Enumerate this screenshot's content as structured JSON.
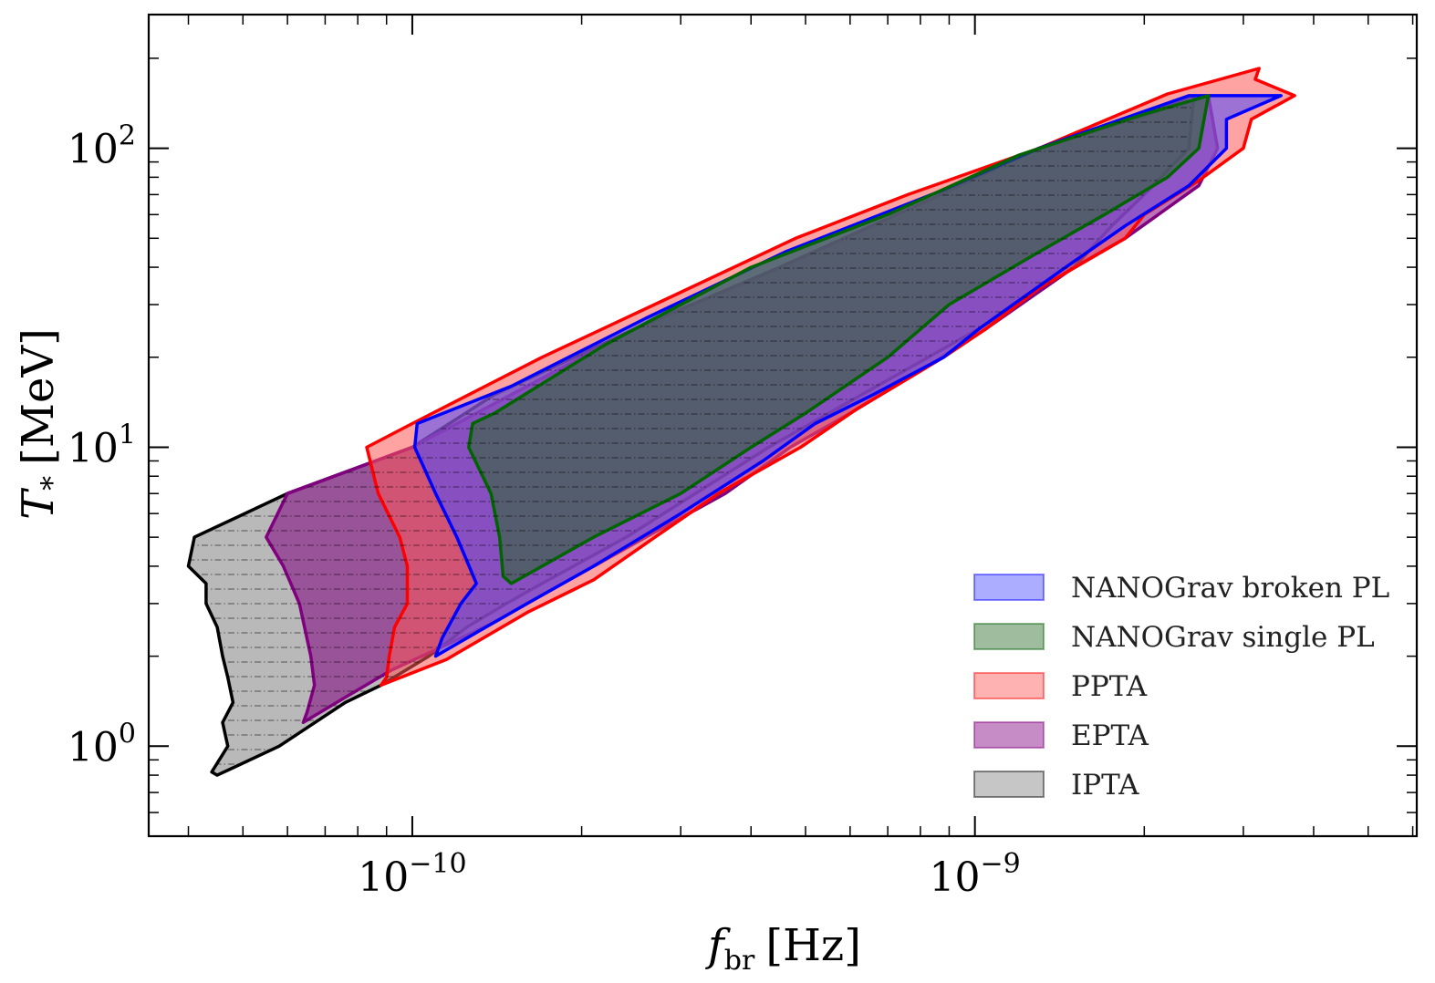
{
  "chart_data": {
    "type": "area",
    "xlabel": "f_br [Hz]",
    "xlabel_main": "f",
    "xlabel_sub": "br",
    "xlabel_unit": "[Hz]",
    "ylabel": "T_* [MeV]",
    "ylabel_main": "T",
    "ylabel_sub": "*",
    "ylabel_unit": "[MeV]",
    "x_scale": "log",
    "y_scale": "log",
    "xlim": [
      3.4e-11,
      6.1e-09
    ],
    "ylim": [
      0.5,
      280
    ],
    "x_ticks": [
      {
        "value": 1e-10,
        "base": "10",
        "exp": "−10"
      },
      {
        "value": 1e-09,
        "base": "10",
        "exp": "−9"
      }
    ],
    "y_ticks": [
      {
        "value": 1,
        "base": "10",
        "exp": "0"
      },
      {
        "value": 10,
        "base": "10",
        "exp": "1"
      },
      {
        "value": 100,
        "base": "10",
        "exp": "2"
      }
    ],
    "legend_position": "lower-right",
    "series": [
      {
        "name": "IPTA",
        "fill": "#808080",
        "stroke": "#000000",
        "polygon": [
          [
            4.5e-11,
            0.8
          ],
          [
            5.8e-11,
            1.0
          ],
          [
            7.6e-11,
            1.4
          ],
          [
            8.8e-11,
            1.6
          ],
          [
            1.07e-10,
            2.0
          ],
          [
            1.25e-10,
            2.5
          ],
          [
            1.47e-10,
            3.0
          ],
          [
            1.7e-10,
            3.5
          ],
          [
            2.4e-10,
            5.0
          ],
          [
            4.3e-10,
            10.0
          ],
          [
            6.3e-10,
            15.0
          ],
          [
            1.02e-09,
            25.0
          ],
          [
            1.5e-09,
            40.0
          ],
          [
            1.75e-09,
            55.0
          ],
          [
            2e-09,
            70.0
          ],
          [
            2.4e-09,
            100.0
          ],
          [
            2.45e-09,
            150.0
          ],
          [
            1.3e-09,
            100.0
          ],
          [
            8.7e-10,
            70.0
          ],
          [
            4.5e-10,
            40.0
          ],
          [
            2.5e-10,
            25.0
          ],
          [
            1.4e-10,
            15.0
          ],
          [
            1e-10,
            10.0
          ],
          [
            6e-11,
            7.0
          ],
          [
            4.1e-11,
            5.0
          ],
          [
            4e-11,
            4.0
          ],
          [
            4.3e-11,
            3.5
          ],
          [
            4.3e-11,
            3.0
          ],
          [
            4.5e-11,
            2.5
          ],
          [
            4.6e-11,
            2.0
          ],
          [
            4.7e-11,
            1.7
          ],
          [
            4.8e-11,
            1.4
          ],
          [
            4.6e-11,
            1.2
          ],
          [
            4.7e-11,
            1.0
          ],
          [
            4.4e-11,
            0.82
          ]
        ]
      },
      {
        "name": "EPTA",
        "fill": "#800080",
        "stroke": "#800080",
        "polygon": [
          [
            6.4e-11,
            1.2
          ],
          [
            7.8e-11,
            1.5
          ],
          [
            9.2e-11,
            1.8
          ],
          [
            1.1e-10,
            2.1
          ],
          [
            1.4e-10,
            2.6
          ],
          [
            1.7e-10,
            3.2
          ],
          [
            2.6e-10,
            5.0
          ],
          [
            3.6e-10,
            7.0
          ],
          [
            4.7e-10,
            10.0
          ],
          [
            6e-10,
            13.0
          ],
          [
            8e-10,
            18.0
          ],
          [
            1.05e-09,
            25.0
          ],
          [
            1.5e-09,
            40.0
          ],
          [
            1.85e-09,
            50.0
          ],
          [
            2.5e-09,
            75.0
          ],
          [
            2.7e-09,
            100.0
          ],
          [
            2.6e-09,
            150.0
          ],
          [
            1.3e-09,
            100.0
          ],
          [
            8.7e-10,
            70.0
          ],
          [
            4.5e-10,
            40.0
          ],
          [
            2.5e-10,
            25.0
          ],
          [
            1.5e-10,
            15.0
          ],
          [
            1e-10,
            10.0
          ],
          [
            6e-11,
            7.0
          ],
          [
            5.5e-11,
            5.0
          ],
          [
            5.9e-11,
            4.0
          ],
          [
            6.3e-11,
            3.0
          ],
          [
            6.6e-11,
            2.0
          ],
          [
            6.7e-11,
            1.6
          ],
          [
            6.5e-11,
            1.3
          ]
        ]
      },
      {
        "name": "PPTA",
        "fill": "#ff5555",
        "stroke": "#ff0000",
        "polygon": [
          [
            8.8e-11,
            1.6
          ],
          [
            1.15e-10,
            1.95
          ],
          [
            1.6e-10,
            2.8
          ],
          [
            2.1e-10,
            3.6
          ],
          [
            2.7e-10,
            5.0
          ],
          [
            3.5e-10,
            7.0
          ],
          [
            4.9e-10,
            10.0
          ],
          [
            6.2e-10,
            13.5
          ],
          [
            8.8e-10,
            20.0
          ],
          [
            1.05e-09,
            25.0
          ],
          [
            1.3e-09,
            34.0
          ],
          [
            1.85e-09,
            50.0
          ],
          [
            2e-09,
            60.0
          ],
          [
            2.5e-09,
            78.0
          ],
          [
            3e-09,
            100.0
          ],
          [
            3.1e-09,
            125.0
          ],
          [
            3.7e-09,
            150.0
          ],
          [
            3.15e-09,
            170.0
          ],
          [
            3.2e-09,
            185.0
          ],
          [
            2.2e-09,
            152.0
          ],
          [
            1.3e-09,
            100.0
          ],
          [
            7.6e-10,
            70.0
          ],
          [
            4.8e-10,
            50.0
          ],
          [
            3e-10,
            33.0
          ],
          [
            1.7e-10,
            20.0
          ],
          [
            1e-10,
            12.0
          ],
          [
            8.3e-11,
            10.0
          ],
          [
            8.7e-11,
            7.0
          ],
          [
            9.5e-11,
            5.0
          ],
          [
            9.8e-11,
            4.0
          ],
          [
            9.8e-11,
            3.0
          ],
          [
            9.3e-11,
            2.5
          ],
          [
            9.1e-11,
            2.0
          ],
          [
            9e-11,
            1.7
          ]
        ]
      },
      {
        "name": "NANOGrav broken PL",
        "fill": "#4a4aff",
        "stroke": "#0000ff",
        "polygon": [
          [
            1.1e-10,
            2.0
          ],
          [
            1.3e-10,
            2.4
          ],
          [
            1.6e-10,
            3.0
          ],
          [
            2.1e-10,
            4.0
          ],
          [
            3e-10,
            6.0
          ],
          [
            4.2e-10,
            9.0
          ],
          [
            5.2e-10,
            12.0
          ],
          [
            6.6e-10,
            15.0
          ],
          [
            8.8e-10,
            20.0
          ],
          [
            1.02e-09,
            25.0
          ],
          [
            1.45e-09,
            40.0
          ],
          [
            1.85e-09,
            55.0
          ],
          [
            2.4e-09,
            75.0
          ],
          [
            2.8e-09,
            100.0
          ],
          [
            2.8e-09,
            125.0
          ],
          [
            3.5e-09,
            150.0
          ],
          [
            2.4e-09,
            150.0
          ],
          [
            1.3e-09,
            100.0
          ],
          [
            8.7e-10,
            72.0
          ],
          [
            4.6e-10,
            45.0
          ],
          [
            2.6e-10,
            27.0
          ],
          [
            1.5e-10,
            16.0
          ],
          [
            1.02e-10,
            12.0
          ],
          [
            1.01e-10,
            10.0
          ],
          [
            1.1e-10,
            7.0
          ],
          [
            1.2e-10,
            5.0
          ],
          [
            1.3e-10,
            3.5
          ],
          [
            1.22e-10,
            3.0
          ],
          [
            1.13e-10,
            2.3
          ]
        ]
      },
      {
        "name": "NANOGrav single PL",
        "fill": "#2a6a2a",
        "stroke": "#006400",
        "polygon": [
          [
            1.5e-10,
            3.5
          ],
          [
            2.1e-10,
            5.0
          ],
          [
            3e-10,
            7.0
          ],
          [
            4e-10,
            10.0
          ],
          [
            5e-10,
            13.0
          ],
          [
            7e-10,
            20.0
          ],
          [
            9e-10,
            30.0
          ],
          [
            1.3e-09,
            45.0
          ],
          [
            1.7e-09,
            60.0
          ],
          [
            2.2e-09,
            80.0
          ],
          [
            2.5e-09,
            100.0
          ],
          [
            2.6e-09,
            150.0
          ],
          [
            2e-09,
            130.0
          ],
          [
            1.2e-09,
            95.0
          ],
          [
            7e-10,
            60.0
          ],
          [
            4e-10,
            40.0
          ],
          [
            2.2e-10,
            22.0
          ],
          [
            1.4e-10,
            13.0
          ],
          [
            1.28e-10,
            12.0
          ],
          [
            1.26e-10,
            10.0
          ],
          [
            1.38e-10,
            7.0
          ],
          [
            1.43e-10,
            5.0
          ],
          [
            1.45e-10,
            3.7
          ]
        ]
      }
    ]
  }
}
